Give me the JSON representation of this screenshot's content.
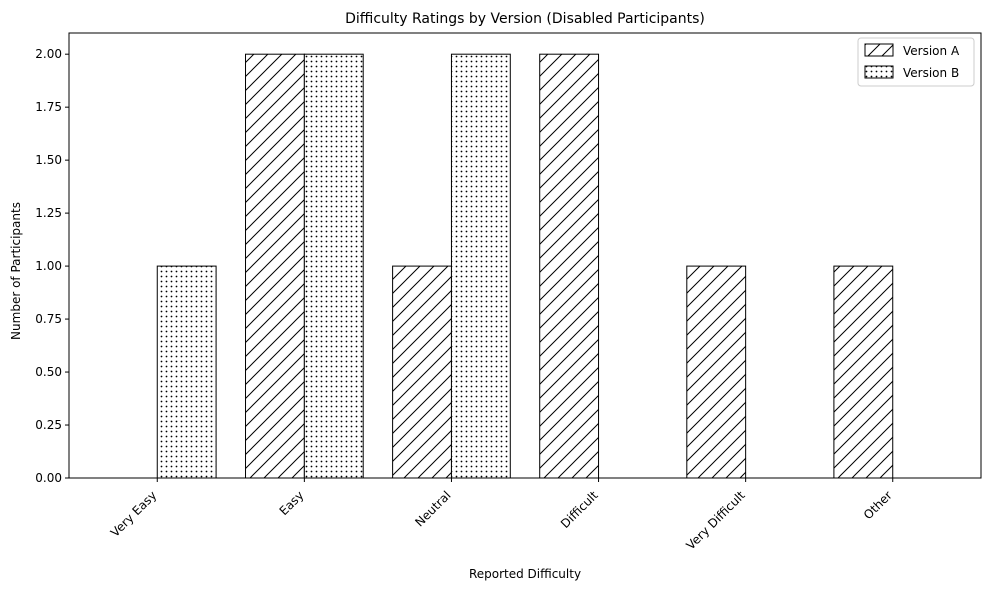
{
  "chart_data": {
    "type": "bar",
    "title": "Difficulty Ratings by Version (Disabled Participants)",
    "xlabel": "Reported Difficulty",
    "ylabel": "Number of Participants",
    "categories": [
      "Very Easy",
      "Easy",
      "Neutral",
      "Difficult",
      "Very Difficult",
      "Other"
    ],
    "series": [
      {
        "name": "Version A",
        "values": [
          0,
          2,
          1,
          2,
          1,
          1
        ],
        "pattern": "diagonal-hatch"
      },
      {
        "name": "Version B",
        "values": [
          1,
          2,
          2,
          0,
          0,
          0
        ],
        "pattern": "dots"
      }
    ],
    "ylim": [
      0,
      2.1
    ],
    "yticks": [
      "0.00",
      "0.25",
      "0.50",
      "0.75",
      "1.00",
      "1.25",
      "1.50",
      "1.75",
      "2.00"
    ],
    "grid": false,
    "legend_position": "top-right",
    "colors": {
      "bar_fill": "#ffffff",
      "bar_edge": "#000000",
      "axis": "#000000"
    }
  }
}
